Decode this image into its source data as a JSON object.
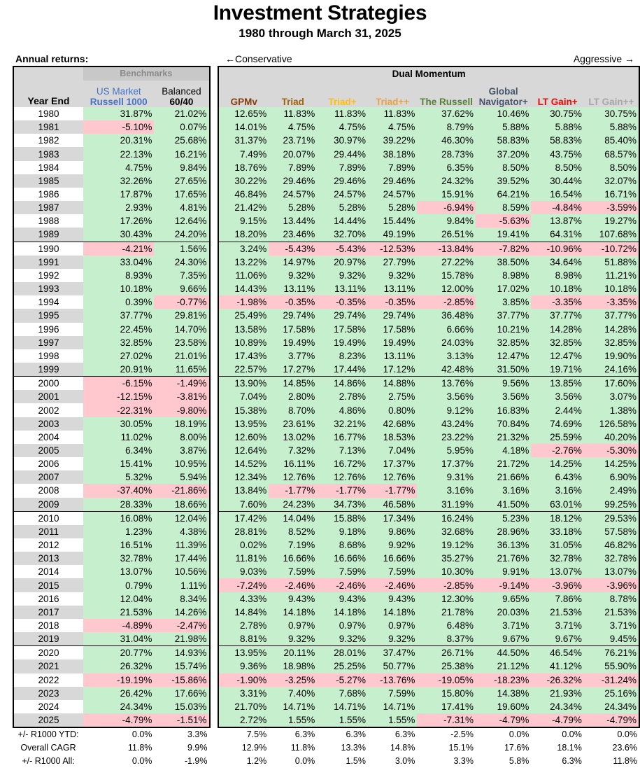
{
  "title": "Investment Strategies",
  "subtitle": "1980 through March 31, 2025",
  "annual_returns_label": "Annual returns:",
  "conservative_label": "←Conservative",
  "aggressive_label": "Aggressive →",
  "benchmarks_label": "Benchmarks",
  "dual_momentum_label": "Dual Momentum",
  "year_end_label": "Year End",
  "columns": [
    {
      "top": "US Market",
      "bottom": "Russell 1000",
      "color": "#4472c4"
    },
    {
      "top": "Balanced",
      "bottom": "60/40",
      "color": "#000000"
    },
    {
      "top": "",
      "bottom": "GPMv",
      "color": "#843c0c"
    },
    {
      "top": "",
      "bottom": "Triad",
      "color": "#9c6500"
    },
    {
      "top": "",
      "bottom": "Triad+",
      "color": "#ffc000"
    },
    {
      "top": "",
      "bottom": "Triad++",
      "color": "#e8a33b"
    },
    {
      "top": "",
      "bottom": "The Russell",
      "color": "#548235"
    },
    {
      "top": "Global",
      "bottom": "Navigator+",
      "color": "#44546a"
    },
    {
      "top": "",
      "bottom": "LT Gain+",
      "color": "#ff0000"
    },
    {
      "top": "",
      "bottom": "LT Gain++",
      "color": "#a6a6a6"
    }
  ],
  "rows": [
    {
      "year": "1980",
      "values": [
        "31.87%",
        "21.02%",
        "12.65%",
        "11.83%",
        "11.83%",
        "11.83%",
        "37.62%",
        "10.46%",
        "30.75%",
        "30.75%"
      ]
    },
    {
      "year": "1981",
      "values": [
        "-5.10%",
        "0.07%",
        "14.01%",
        "4.75%",
        "4.75%",
        "4.75%",
        "8.79%",
        "5.88%",
        "5.88%",
        "5.88%"
      ]
    },
    {
      "year": "1982",
      "values": [
        "20.31%",
        "25.68%",
        "31.37%",
        "23.71%",
        "30.97%",
        "39.22%",
        "46.30%",
        "58.83%",
        "58.83%",
        "85.40%"
      ]
    },
    {
      "year": "1983",
      "values": [
        "22.13%",
        "16.21%",
        "7.49%",
        "20.07%",
        "29.44%",
        "38.18%",
        "28.73%",
        "37.20%",
        "43.75%",
        "68.57%"
      ]
    },
    {
      "year": "1984",
      "values": [
        "4.75%",
        "9.84%",
        "18.76%",
        "7.89%",
        "7.89%",
        "7.89%",
        "6.35%",
        "8.50%",
        "8.50%",
        "8.50%"
      ]
    },
    {
      "year": "1985",
      "values": [
        "32.26%",
        "27.65%",
        "30.22%",
        "29.46%",
        "29.46%",
        "29.46%",
        "24.32%",
        "39.52%",
        "30.44%",
        "32.07%"
      ]
    },
    {
      "year": "1986",
      "values": [
        "17.87%",
        "17.65%",
        "46.84%",
        "24.57%",
        "24.57%",
        "24.57%",
        "15.91%",
        "64.21%",
        "16.54%",
        "16.71%"
      ]
    },
    {
      "year": "1987",
      "values": [
        "2.93%",
        "4.81%",
        "21.42%",
        "5.28%",
        "5.28%",
        "5.28%",
        "-6.94%",
        "8.59%",
        "-4.84%",
        "-3.59%"
      ]
    },
    {
      "year": "1988",
      "values": [
        "17.26%",
        "12.64%",
        "9.15%",
        "13.44%",
        "14.44%",
        "15.44%",
        "9.84%",
        "-5.63%",
        "13.87%",
        "19.27%"
      ]
    },
    {
      "year": "1989",
      "values": [
        "30.43%",
        "24.20%",
        "18.20%",
        "23.46%",
        "32.70%",
        "49.19%",
        "26.51%",
        "19.41%",
        "64.31%",
        "107.68%"
      ]
    },
    {
      "year": "1990",
      "values": [
        "-4.21%",
        "1.56%",
        "3.24%",
        "-5.43%",
        "-5.43%",
        "-12.53%",
        "-13.84%",
        "-7.82%",
        "-10.96%",
        "-10.72%"
      ]
    },
    {
      "year": "1991",
      "values": [
        "33.04%",
        "24.30%",
        "13.22%",
        "14.97%",
        "20.97%",
        "27.79%",
        "27.22%",
        "38.50%",
        "34.64%",
        "51.88%"
      ]
    },
    {
      "year": "1992",
      "values": [
        "8.93%",
        "7.35%",
        "11.06%",
        "9.32%",
        "9.32%",
        "9.32%",
        "15.78%",
        "8.98%",
        "8.98%",
        "11.21%"
      ]
    },
    {
      "year": "1993",
      "values": [
        "10.18%",
        "9.66%",
        "14.43%",
        "13.11%",
        "13.11%",
        "13.11%",
        "12.00%",
        "17.02%",
        "10.18%",
        "10.18%"
      ]
    },
    {
      "year": "1994",
      "values": [
        "0.39%",
        "-0.77%",
        "-1.98%",
        "-0.35%",
        "-0.35%",
        "-0.35%",
        "-2.85%",
        "3.85%",
        "-3.35%",
        "-3.35%"
      ]
    },
    {
      "year": "1995",
      "values": [
        "37.77%",
        "29.81%",
        "25.49%",
        "29.74%",
        "29.74%",
        "29.74%",
        "36.48%",
        "37.77%",
        "37.77%",
        "37.77%"
      ]
    },
    {
      "year": "1996",
      "values": [
        "22.45%",
        "14.70%",
        "13.58%",
        "17.58%",
        "17.58%",
        "17.58%",
        "6.66%",
        "10.21%",
        "14.28%",
        "14.28%"
      ]
    },
    {
      "year": "1997",
      "values": [
        "32.85%",
        "23.58%",
        "10.89%",
        "19.49%",
        "19.49%",
        "19.49%",
        "24.03%",
        "32.85%",
        "32.85%",
        "32.85%"
      ]
    },
    {
      "year": "1998",
      "values": [
        "27.02%",
        "21.01%",
        "17.43%",
        "3.77%",
        "8.23%",
        "13.11%",
        "3.13%",
        "12.47%",
        "12.47%",
        "19.90%"
      ]
    },
    {
      "year": "1999",
      "values": [
        "20.91%",
        "11.65%",
        "22.57%",
        "17.27%",
        "17.44%",
        "17.12%",
        "42.48%",
        "31.50%",
        "19.71%",
        "24.16%"
      ]
    },
    {
      "year": "2000",
      "values": [
        "-6.15%",
        "-1.49%",
        "13.90%",
        "14.85%",
        "14.86%",
        "14.88%",
        "13.76%",
        "9.56%",
        "13.85%",
        "17.60%"
      ]
    },
    {
      "year": "2001",
      "values": [
        "-12.15%",
        "-3.81%",
        "7.04%",
        "2.80%",
        "2.78%",
        "2.75%",
        "3.56%",
        "3.56%",
        "3.56%",
        "3.07%"
      ]
    },
    {
      "year": "2002",
      "values": [
        "-22.31%",
        "-9.80%",
        "15.38%",
        "8.70%",
        "4.86%",
        "0.80%",
        "9.12%",
        "16.83%",
        "2.44%",
        "1.38%"
      ]
    },
    {
      "year": "2003",
      "values": [
        "30.05%",
        "18.19%",
        "13.95%",
        "23.61%",
        "32.21%",
        "42.68%",
        "43.24%",
        "70.84%",
        "74.69%",
        "126.58%"
      ]
    },
    {
      "year": "2004",
      "values": [
        "11.02%",
        "8.00%",
        "12.60%",
        "13.02%",
        "16.77%",
        "18.53%",
        "23.22%",
        "21.32%",
        "25.59%",
        "40.20%"
      ]
    },
    {
      "year": "2005",
      "values": [
        "6.34%",
        "3.87%",
        "12.64%",
        "7.32%",
        "7.13%",
        "7.04%",
        "5.95%",
        "4.18%",
        "-2.76%",
        "-5.30%"
      ]
    },
    {
      "year": "2006",
      "values": [
        "15.41%",
        "10.95%",
        "14.52%",
        "16.11%",
        "16.72%",
        "17.37%",
        "17.37%",
        "21.72%",
        "14.25%",
        "14.25%"
      ]
    },
    {
      "year": "2007",
      "values": [
        "5.32%",
        "5.94%",
        "12.34%",
        "12.76%",
        "12.76%",
        "12.76%",
        "9.31%",
        "21.66%",
        "6.43%",
        "6.90%"
      ]
    },
    {
      "year": "2008",
      "values": [
        "-37.40%",
        "-21.86%",
        "13.84%",
        "-1.77%",
        "-1.77%",
        "-1.77%",
        "3.16%",
        "3.16%",
        "3.16%",
        "2.49%"
      ]
    },
    {
      "year": "2009",
      "values": [
        "28.33%",
        "18.66%",
        "7.60%",
        "24.23%",
        "34.73%",
        "46.58%",
        "31.19%",
        "41.50%",
        "63.01%",
        "99.25%"
      ]
    },
    {
      "year": "2010",
      "values": [
        "16.08%",
        "12.04%",
        "17.42%",
        "14.04%",
        "15.88%",
        "17.34%",
        "16.24%",
        "5.23%",
        "18.12%",
        "29.53%"
      ]
    },
    {
      "year": "2011",
      "values": [
        "1.23%",
        "4.38%",
        "28.81%",
        "8.52%",
        "9.18%",
        "9.86%",
        "32.68%",
        "28.96%",
        "33.18%",
        "57.58%"
      ]
    },
    {
      "year": "2012",
      "values": [
        "16.51%",
        "11.39%",
        "0.02%",
        "7.19%",
        "8.68%",
        "9.92%",
        "19.12%",
        "36.13%",
        "31.05%",
        "46.82%"
      ]
    },
    {
      "year": "2013",
      "values": [
        "32.78%",
        "17.44%",
        "11.81%",
        "16.66%",
        "16.66%",
        "16.66%",
        "35.27%",
        "21.76%",
        "32.78%",
        "32.78%"
      ]
    },
    {
      "year": "2014",
      "values": [
        "13.07%",
        "10.56%",
        "9.03%",
        "7.59%",
        "7.59%",
        "7.59%",
        "10.30%",
        "9.91%",
        "13.07%",
        "13.07%"
      ]
    },
    {
      "year": "2015",
      "values": [
        "0.79%",
        "1.11%",
        "-7.24%",
        "-2.46%",
        "-2.46%",
        "-2.46%",
        "-2.85%",
        "-9.14%",
        "-3.96%",
        "-3.96%"
      ]
    },
    {
      "year": "2016",
      "values": [
        "12.04%",
        "8.34%",
        "4.33%",
        "9.43%",
        "9.43%",
        "9.43%",
        "12.30%",
        "9.65%",
        "7.86%",
        "8.78%"
      ]
    },
    {
      "year": "2017",
      "values": [
        "21.53%",
        "14.26%",
        "14.84%",
        "14.18%",
        "14.18%",
        "14.18%",
        "21.78%",
        "20.03%",
        "21.53%",
        "21.53%"
      ]
    },
    {
      "year": "2018",
      "values": [
        "-4.89%",
        "-2.47%",
        "2.78%",
        "0.97%",
        "0.97%",
        "0.97%",
        "6.48%",
        "3.71%",
        "3.71%",
        "3.71%"
      ]
    },
    {
      "year": "2019",
      "values": [
        "31.04%",
        "21.98%",
        "8.81%",
        "9.32%",
        "9.32%",
        "9.32%",
        "8.37%",
        "9.67%",
        "9.67%",
        "9.45%"
      ]
    },
    {
      "year": "2020",
      "values": [
        "20.77%",
        "14.93%",
        "13.95%",
        "20.11%",
        "28.01%",
        "37.47%",
        "26.71%",
        "44.50%",
        "46.54%",
        "76.21%"
      ]
    },
    {
      "year": "2021",
      "values": [
        "26.32%",
        "15.74%",
        "9.36%",
        "18.98%",
        "25.25%",
        "50.77%",
        "25.38%",
        "21.12%",
        "41.12%",
        "55.90%"
      ]
    },
    {
      "year": "2022",
      "values": [
        "-19.19%",
        "-15.86%",
        "-1.90%",
        "-3.25%",
        "-5.27%",
        "-13.76%",
        "-19.05%",
        "-18.23%",
        "-26.32%",
        "-31.24%"
      ]
    },
    {
      "year": "2023",
      "values": [
        "26.42%",
        "17.66%",
        "3.31%",
        "7.40%",
        "7.68%",
        "7.59%",
        "15.80%",
        "14.38%",
        "21.93%",
        "25.16%"
      ]
    },
    {
      "year": "2024",
      "values": [
        "24.34%",
        "15.03%",
        "21.70%",
        "14.71%",
        "14.71%",
        "14.71%",
        "17.41%",
        "19.60%",
        "24.34%",
        "24.34%"
      ]
    },
    {
      "year": "2025",
      "values": [
        "-4.79%",
        "-1.51%",
        "2.72%",
        "1.55%",
        "1.55%",
        "1.55%",
        "-7.31%",
        "-4.79%",
        "-4.79%",
        "-4.79%"
      ]
    }
  ],
  "summary": [
    {
      "label": "+/- R1000 YTD:",
      "values": [
        "0.0%",
        "3.3%",
        "7.5%",
        "6.3%",
        "6.3%",
        "6.3%",
        "-2.5%",
        "0.0%",
        "0.0%",
        "0.0%"
      ]
    },
    {
      "label": "Overall CAGR",
      "values": [
        "11.8%",
        "9.9%",
        "12.9%",
        "11.8%",
        "13.3%",
        "14.8%",
        "15.1%",
        "17.6%",
        "18.1%",
        "23.6%"
      ]
    },
    {
      "label": "+/- R1000 All:",
      "values": [
        "0.0%",
        "-1.9%",
        "1.2%",
        "0.0%",
        "1.5%",
        "3.0%",
        "3.3%",
        "5.8%",
        "6.3%",
        "11.8%"
      ]
    }
  ]
}
